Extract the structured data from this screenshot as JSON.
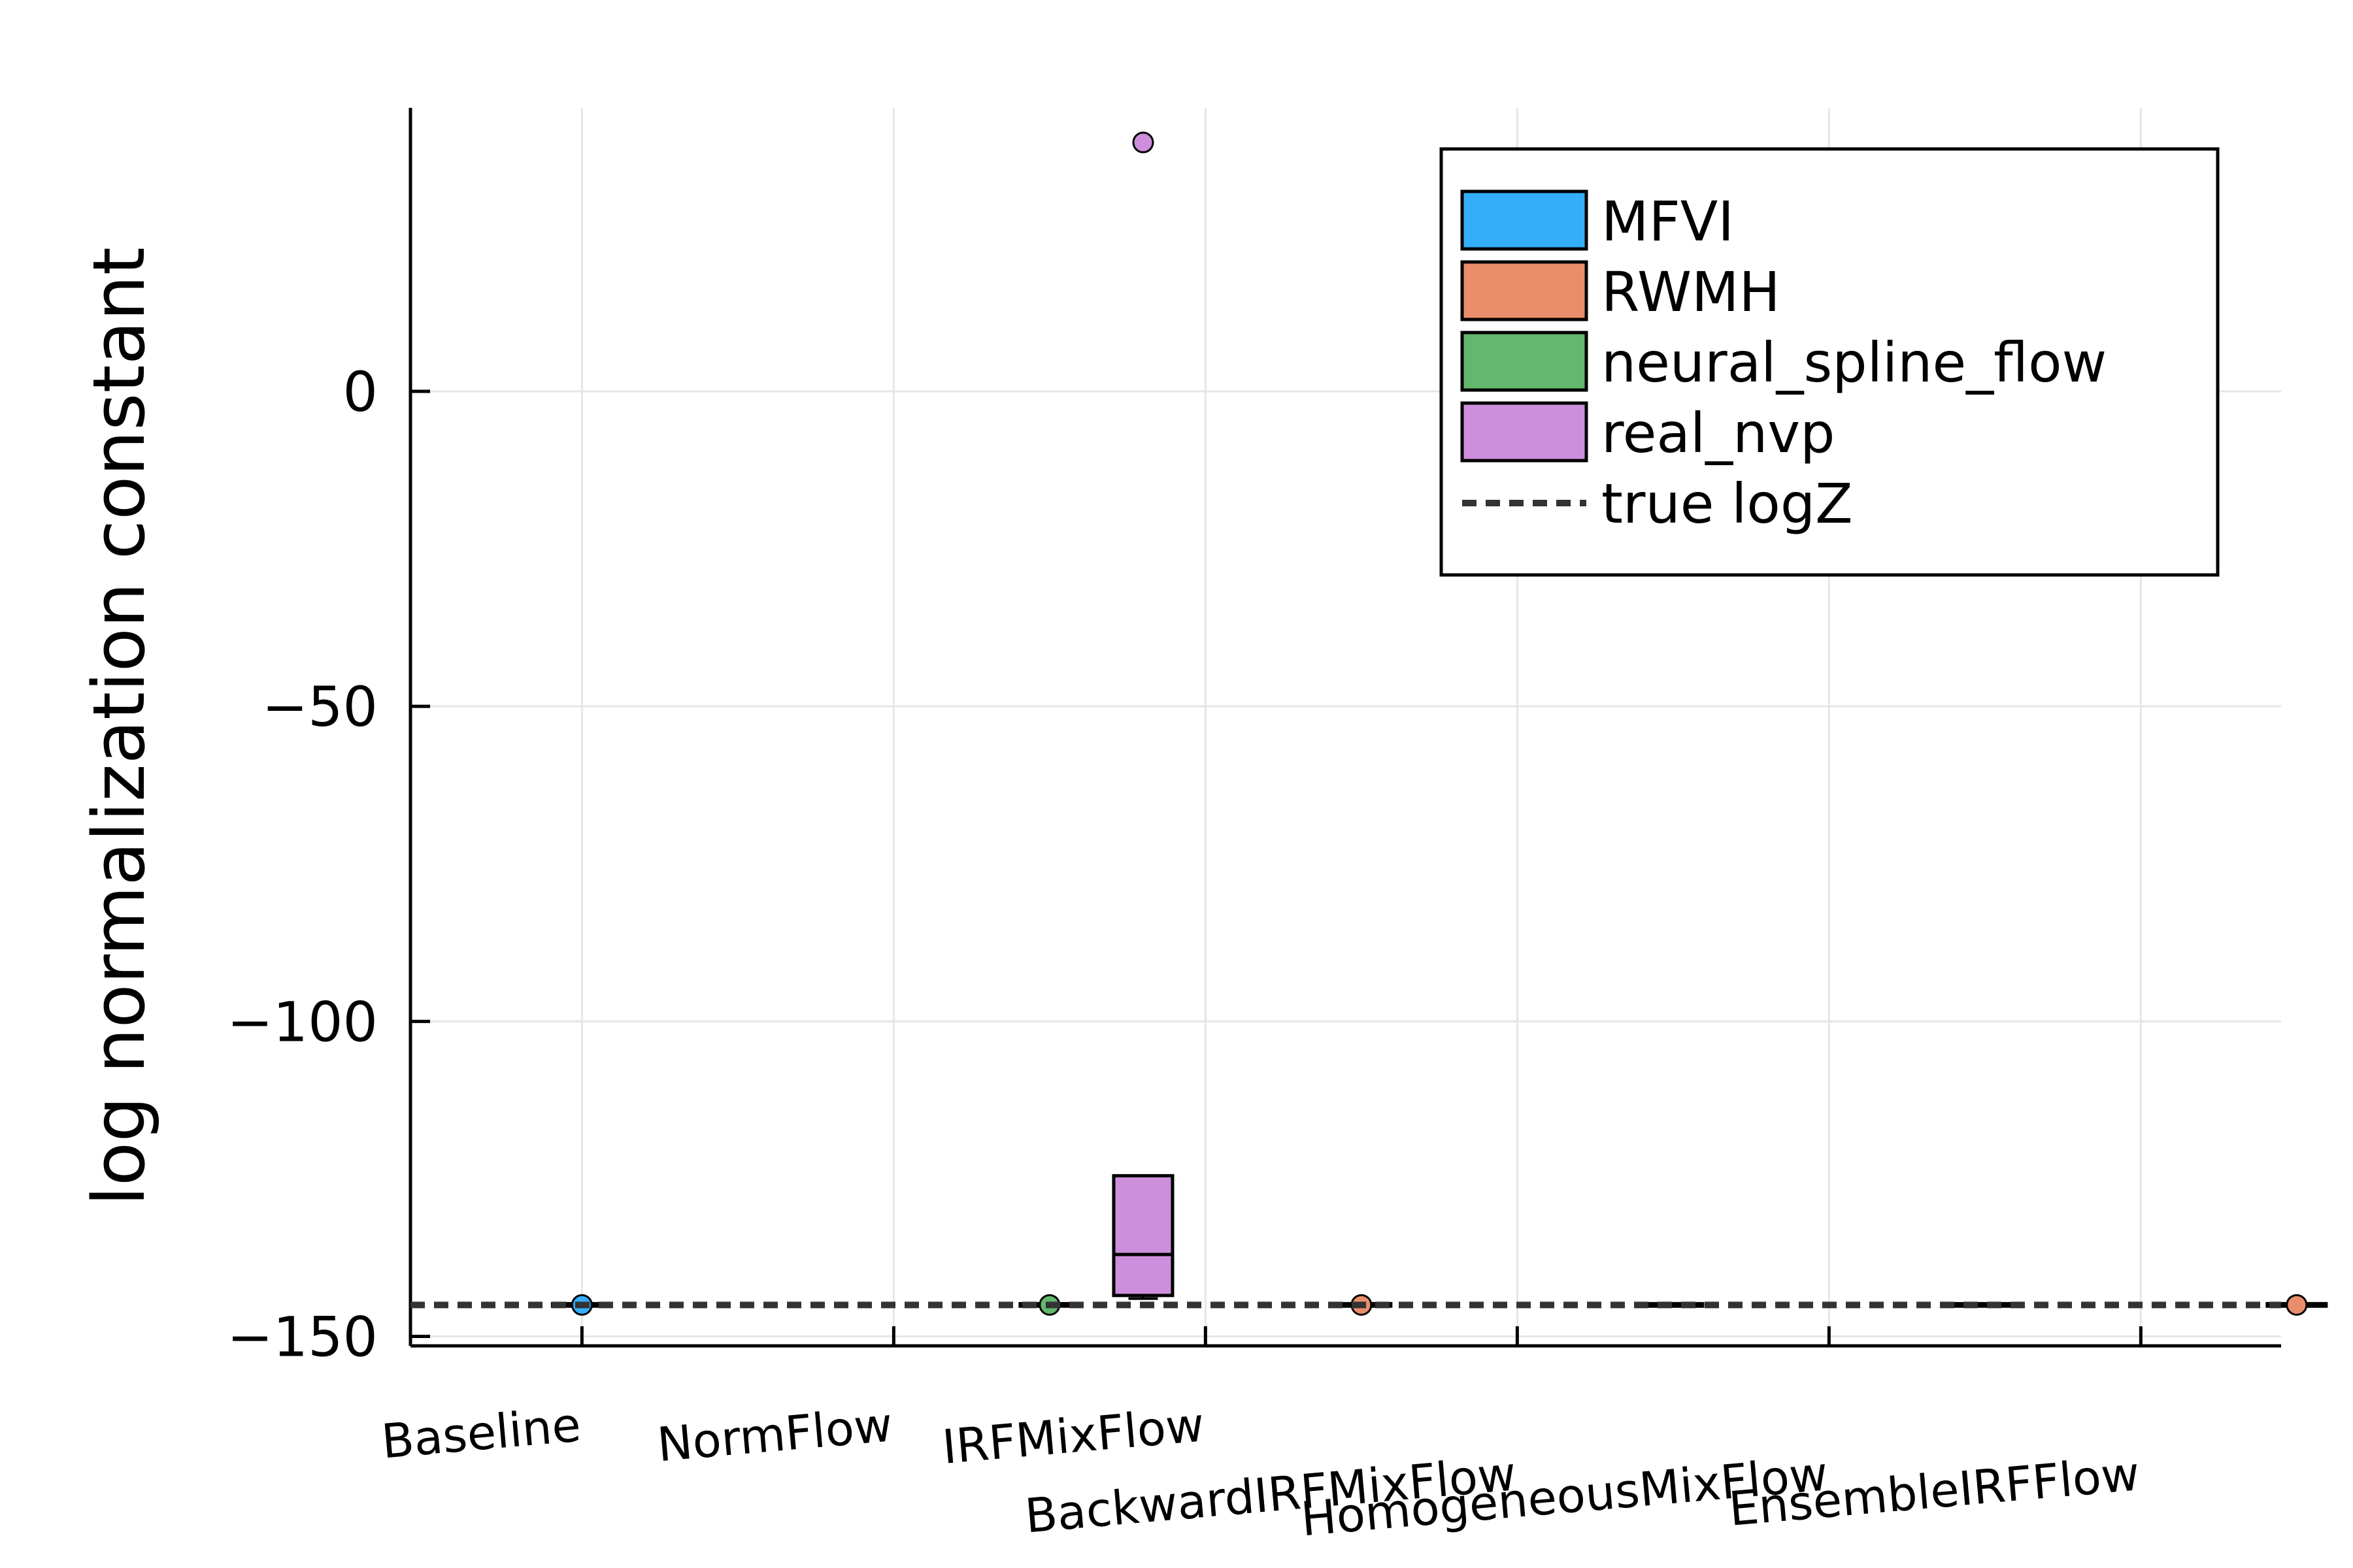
{
  "chart_data": {
    "type": "box",
    "ylabel": "log normalization constant",
    "xlabel": "",
    "title": "",
    "categories": [
      "Baseline",
      "NormFlow",
      "IRFMixFlow",
      "BackwardIRFMixFlow",
      "HomogeneousMixFlow",
      "EnsembleIRFFlow"
    ],
    "x_tick_labels": [
      {
        "text": "Baseline",
        "row": 0
      },
      {
        "text": "NormFlow",
        "row": 0
      },
      {
        "text": "IRFMixFlow",
        "row": 0
      },
      {
        "text": "BackwardIRFMixFlow",
        "row": 1
      },
      {
        "text": "HomogeneousMixFlow",
        "row": 1
      },
      {
        "text": "EnsembleIRFFlow",
        "row": 1
      }
    ],
    "y_ticks": [
      0,
      -50,
      -100,
      -150
    ],
    "y_tick_labels": [
      "0",
      "−50",
      "−100",
      "−150"
    ],
    "ylim": [
      -151.5,
      45
    ],
    "grid": true,
    "legend_position": "top-right",
    "true_logZ": -145,
    "series": [
      {
        "name": "MFVI",
        "color": "#35AEFA",
        "boxes": [
          {
            "category": 0,
            "q1": -145.2,
            "median": -145,
            "q3": -144.8,
            "whisker_low": -145.2,
            "whisker_high": -144.8,
            "outliers": [
              -145
            ]
          }
        ]
      },
      {
        "name": "RWMH",
        "color": "#EA8D6A",
        "boxes": [
          {
            "category": 2.5,
            "q1": -145.2,
            "median": -145,
            "q3": -144.8,
            "whisker_low": -145.2,
            "whisker_high": -144.8,
            "outliers": [
              -145
            ]
          },
          {
            "category": 5.5,
            "q1": -145.2,
            "median": -145,
            "q3": -144.8,
            "whisker_low": -145.2,
            "whisker_high": -144.8,
            "outliers": [
              -145
            ]
          }
        ]
      },
      {
        "name": "neural_spline_flow",
        "color": "#63B86D",
        "boxes": [
          {
            "category": 1.5,
            "q1": -145.2,
            "median": -145,
            "q3": -144.8,
            "whisker_low": -145.2,
            "whisker_high": -144.8,
            "outliers": [
              -145
            ]
          },
          {
            "category": 3.5,
            "q1": -145.2,
            "median": -145,
            "q3": -144.8,
            "whisker_low": -145.2,
            "whisker_high": -144.8,
            "outliers": []
          },
          {
            "category": 4.5,
            "q1": -145.2,
            "median": -145,
            "q3": -144.8,
            "whisker_low": -145.2,
            "whisker_high": -144.8,
            "outliers": []
          }
        ]
      },
      {
        "name": "real_nvp",
        "color": "#CD8FDB",
        "boxes": [
          {
            "category": 1.8,
            "q1": -143.5,
            "median": -137,
            "q3": -124.5,
            "whisker_low": -144,
            "whisker_high": -124.5,
            "outliers": [
              39.5
            ]
          }
        ]
      }
    ],
    "legend": [
      {
        "label": "MFVI",
        "kind": "patch",
        "color": "#35AEFA"
      },
      {
        "label": "RWMH",
        "kind": "patch",
        "color": "#EA8D6A"
      },
      {
        "label": "neural_spline_flow",
        "kind": "patch",
        "color": "#63B86D"
      },
      {
        "label": "real_nvp",
        "kind": "patch",
        "color": "#CD8FDB"
      },
      {
        "label": "true logZ",
        "kind": "dashed-line",
        "color": "#333333"
      }
    ]
  }
}
